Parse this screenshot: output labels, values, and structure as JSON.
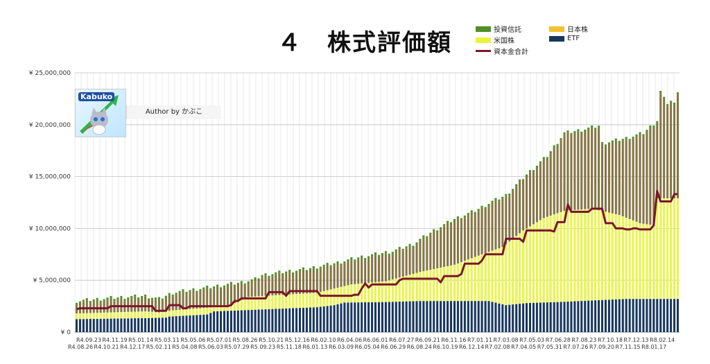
{
  "chart_data": {
    "type": "bar",
    "title": "４　株式評価額",
    "author_label": "Author by かぶこ",
    "logo_text": "Kabuko",
    "ylim": [
      0,
      25000000
    ],
    "y_ticks": [
      "¥ 0",
      "¥ 5,000,000",
      "¥ 10,000,000",
      "¥ 15,000,000",
      "¥ 20,000,000",
      "¥ 25,000,000"
    ],
    "y_tick_values": [
      0,
      5000000,
      10000000,
      15000000,
      20000000,
      25000000
    ],
    "x_labels_top": [
      "R4.09.23",
      "R4.11.19",
      "R5.01.14",
      "R5.03.11",
      "R5.05.06",
      "R5.07.01",
      "R5.08.26",
      "R5.10.21",
      "R5.12.16",
      "R6.02.10",
      "R6.04.06",
      "R6.06.01",
      "R6.07.27",
      "R6.09.21",
      "R6.11.16",
      "R7.01.11",
      "R7.03.08",
      "R7.05.03",
      "R7.06.28",
      "R7.08.23",
      "R7.10.18",
      "R7.12.13",
      "R8.02.14"
    ],
    "x_labels_bottom": [
      "R4.08.26",
      "R4.10.21",
      "R4.12.17",
      "R5.02.11",
      "R5.04.08",
      "R5.06.03",
      "R5.07.29",
      "R5.09.23",
      "R5.11.18",
      "R6.01.13",
      "R6.03.09",
      "R6.05.04",
      "R6.06.29",
      "R6.08.24",
      "R6.10.19",
      "R6.12.14",
      "R7.02.08",
      "R7.04.05",
      "R7.05.31",
      "R7.07.26",
      "R7.09.20",
      "R7.11.15",
      "R8.01.17"
    ],
    "legend": [
      {
        "name": "投資信託",
        "color": "#4f8f23",
        "kind": "bar"
      },
      {
        "name": "日本株",
        "color": "#f2c230",
        "kind": "bar"
      },
      {
        "name": "米国株",
        "color": "#eaf53a",
        "kind": "bar"
      },
      {
        "name": "ETF",
        "color": "#17375e",
        "kind": "bar"
      },
      {
        "name": "資本金合計",
        "color": "#7b1628",
        "kind": "line"
      }
    ],
    "colors": {
      "etf": "#17375e",
      "us": "#e9f54a",
      "jp": "#857543",
      "fund": "#4f8f23",
      "capital": "#7b1628",
      "grid": "#d9d9d9"
    },
    "series_keypoints": {
      "etf": [
        [
          0,
          1250000
        ],
        [
          10,
          1300000
        ],
        [
          20,
          1350000
        ],
        [
          26,
          1400000
        ],
        [
          27,
          1500000
        ],
        [
          38,
          1700000
        ],
        [
          40,
          2000000
        ],
        [
          55,
          2200000
        ],
        [
          70,
          2400000
        ],
        [
          75,
          2600000
        ],
        [
          78,
          2850000
        ],
        [
          90,
          2900000
        ],
        [
          100,
          3000000
        ],
        [
          120,
          3000000
        ],
        [
          125,
          2600000
        ],
        [
          131,
          2800000
        ],
        [
          140,
          2900000
        ],
        [
          150,
          3050000
        ],
        [
          160,
          3200000
        ],
        [
          164,
          3200000
        ]
      ],
      "total": [
        [
          0,
          2800000
        ],
        [
          10,
          3100000
        ],
        [
          20,
          3300000
        ],
        [
          24,
          3000000
        ],
        [
          28,
          3600000
        ],
        [
          36,
          4000000
        ],
        [
          48,
          4600000
        ],
        [
          52,
          4900000
        ],
        [
          54,
          5300000
        ],
        [
          60,
          5600000
        ],
        [
          67,
          5900000
        ],
        [
          76,
          6500000
        ],
        [
          82,
          7000000
        ],
        [
          92,
          7600000
        ],
        [
          98,
          8300000
        ],
        [
          104,
          9600000
        ],
        [
          110,
          10700000
        ],
        [
          116,
          11500000
        ],
        [
          121,
          12400000
        ],
        [
          125,
          13000000
        ],
        [
          131,
          15000000
        ],
        [
          137,
          16800000
        ],
        [
          142,
          19000000
        ],
        [
          147,
          19300000
        ],
        [
          152,
          19700000
        ],
        [
          153,
          18000000
        ],
        [
          160,
          18500000
        ],
        [
          165,
          19000000
        ],
        [
          169,
          20200000
        ],
        [
          170,
          23000000
        ],
        [
          171,
          22300000
        ],
        [
          172,
          21900000
        ],
        [
          173,
          22100000
        ],
        [
          174,
          21800000
        ],
        [
          175,
          23100000
        ]
      ],
      "us_top": [
        [
          0,
          1800000
        ],
        [
          10,
          1900000
        ],
        [
          20,
          2000000
        ],
        [
          24,
          1900000
        ],
        [
          28,
          2100000
        ],
        [
          36,
          2300000
        ],
        [
          44,
          2500000
        ],
        [
          50,
          3400000
        ],
        [
          60,
          3600000
        ],
        [
          70,
          3800000
        ],
        [
          80,
          4600000
        ],
        [
          90,
          4900000
        ],
        [
          100,
          5800000
        ],
        [
          110,
          6500000
        ],
        [
          118,
          7500000
        ],
        [
          124,
          8200000
        ],
        [
          130,
          9800000
        ],
        [
          136,
          11000000
        ],
        [
          142,
          11700000
        ],
        [
          150,
          11900000
        ],
        [
          158,
          11300000
        ],
        [
          164,
          10500000
        ],
        [
          168,
          10300000
        ],
        [
          169,
          12900000
        ],
        [
          175,
          12900000
        ]
      ],
      "capital": [
        [
          0,
          2200000
        ],
        [
          1,
          2300000
        ],
        [
          9,
          2300000
        ],
        [
          10,
          2500000
        ],
        [
          22,
          2500000
        ],
        [
          23,
          2050000
        ],
        [
          26,
          2050000
        ],
        [
          27,
          2600000
        ],
        [
          30,
          2600000
        ],
        [
          31,
          2300000
        ],
        [
          33,
          2500000
        ],
        [
          45,
          2600000
        ],
        [
          46,
          3000000
        ],
        [
          48,
          3250000
        ],
        [
          55,
          3250000
        ],
        [
          56,
          3850000
        ],
        [
          60,
          3850000
        ],
        [
          61,
          3500000
        ],
        [
          62,
          3950000
        ],
        [
          70,
          3950000
        ],
        [
          71,
          3500000
        ],
        [
          81,
          3600000
        ],
        [
          83,
          4200000
        ],
        [
          84,
          4700000
        ],
        [
          85,
          4300000
        ],
        [
          86,
          4600000
        ],
        [
          93,
          4600000
        ],
        [
          94,
          5000000
        ],
        [
          95,
          5150000
        ],
        [
          105,
          5150000
        ],
        [
          106,
          4800000
        ],
        [
          107,
          5400000
        ],
        [
          111,
          5400000
        ],
        [
          112,
          5600000
        ],
        [
          113,
          6600000
        ],
        [
          117,
          6600000
        ],
        [
          118,
          6900000
        ],
        [
          119,
          7500000
        ],
        [
          124,
          7500000
        ],
        [
          125,
          9000000
        ],
        [
          129,
          9000000
        ],
        [
          130,
          8700000
        ],
        [
          131,
          9800000
        ],
        [
          139,
          9700000
        ],
        [
          140,
          10600000
        ],
        [
          142,
          10600000
        ],
        [
          143,
          12300000
        ],
        [
          144,
          11600000
        ],
        [
          149,
          11600000
        ],
        [
          150,
          11900000
        ],
        [
          153,
          11900000
        ],
        [
          154,
          10500000
        ],
        [
          156,
          10500000
        ],
        [
          157,
          10000000
        ],
        [
          160,
          9900000
        ],
        [
          162,
          10000000
        ],
        [
          164,
          9900000
        ],
        [
          168,
          10300000
        ],
        [
          169,
          13600000
        ],
        [
          170,
          12600000
        ],
        [
          173,
          12600000
        ],
        [
          174,
          13300000
        ],
        [
          175,
          13300000
        ]
      ]
    }
  }
}
